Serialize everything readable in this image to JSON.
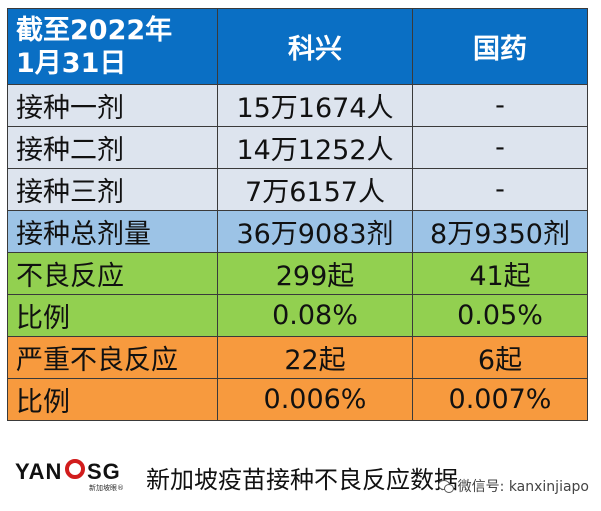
{
  "table": {
    "header": {
      "corner_line1": "截至2022年",
      "corner_line2": "1月31日",
      "col2": "科兴",
      "col3": "国药"
    },
    "rows": [
      {
        "label": "接种一剂",
        "kexing": "15万1674人",
        "guoyao": "-"
      },
      {
        "label": "接种二剂",
        "kexing": "14万1252人",
        "guoyao": "-"
      },
      {
        "label": "接种三剂",
        "kexing": "7万6157人",
        "guoyao": "-"
      },
      {
        "label": "接种总剂量",
        "kexing": "36万9083剂",
        "guoyao": "8万9350剂"
      },
      {
        "label": "不良反应",
        "kexing": "299起",
        "guoyao": "41起"
      },
      {
        "label": "比例",
        "kexing": "0.08%",
        "guoyao": "0.05%"
      },
      {
        "label": "严重不良反应",
        "kexing": "22起",
        "guoyao": "6起"
      },
      {
        "label": "比例",
        "kexing": "0.006%",
        "guoyao": "0.007%"
      }
    ],
    "colors": {
      "header": "#0a6fc4",
      "dose_rows": "#dde4ee",
      "total_row": "#9cc3e6",
      "adverse_rows": "#92d050",
      "severe_rows": "#f79a3e"
    }
  },
  "footer": {
    "logo_left": "YAN",
    "logo_right": "SG",
    "logo_sub": "新加坡眼®",
    "caption": "新加坡疫苗接种不良反应数据",
    "watermark": "微信号: kanxinjiapo",
    "watermark_icon": "wechat-icon"
  }
}
